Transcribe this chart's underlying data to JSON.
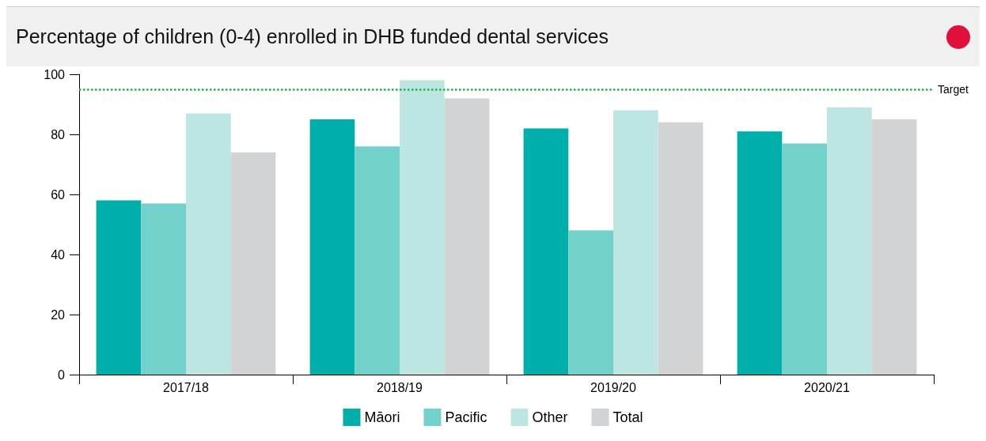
{
  "chart_data": {
    "type": "bar",
    "title": "Percentage of children (0-4) enrolled in DHB funded dental services",
    "categories": [
      "2017/18",
      "2018/19",
      "2019/20",
      "2020/21"
    ],
    "series": [
      {
        "name": "Māori",
        "color": "#00afa9",
        "values": [
          58,
          85,
          82,
          81
        ]
      },
      {
        "name": "Pacific",
        "color": "#73d1cb",
        "values": [
          57,
          76,
          48,
          77
        ]
      },
      {
        "name": "Other",
        "color": "#bde6e3",
        "values": [
          87,
          98,
          88,
          89
        ]
      },
      {
        "name": "Total",
        "color": "#d2d3d5",
        "values": [
          74,
          92,
          84,
          85
        ]
      }
    ],
    "ylim": [
      0,
      100
    ],
    "yticks": [
      0,
      20,
      40,
      60,
      80,
      100
    ],
    "grid": false,
    "legend": "bottom",
    "ref_lines": [
      {
        "axis": "y",
        "value": 95,
        "label": "Target",
        "color": "#22b24c",
        "line_style": "dotted"
      }
    ]
  }
}
